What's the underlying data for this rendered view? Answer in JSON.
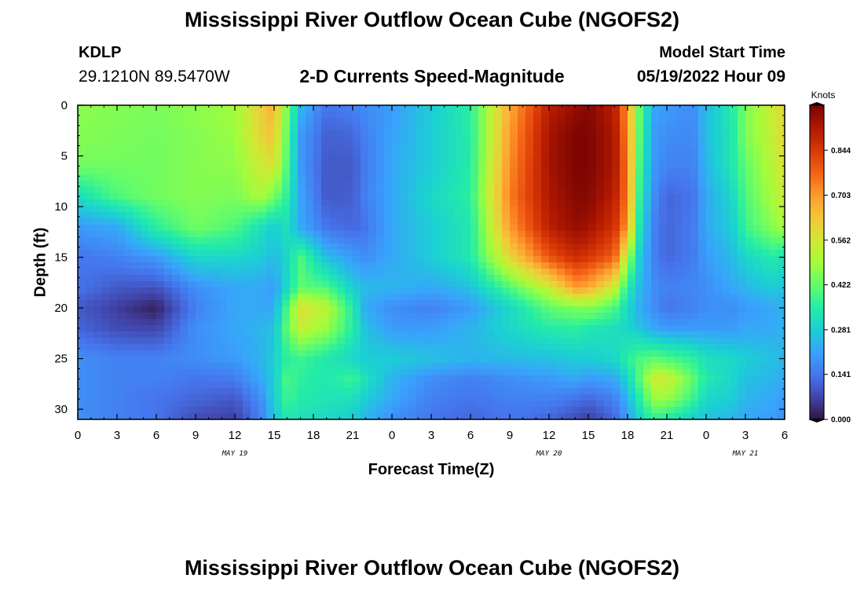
{
  "header": {
    "title": "Mississippi River Outflow Ocean Cube (NGOFS2)",
    "station_id": "KDLP",
    "station_coords": "29.1210N  89.5470W",
    "subtitle": "2-D Currents Speed-Magnitude",
    "model_label": "Model Start Time",
    "model_time": "05/19/2022 Hour 09"
  },
  "footer": {
    "title": "Mississippi River Outflow Ocean Cube (NGOFS2)"
  },
  "chart_data": {
    "type": "heatmap",
    "title": "2-D Currents Speed-Magnitude",
    "xlabel": "Forecast Time(Z)",
    "ylabel": "Depth (ft)",
    "x_tick_labels": [
      "0",
      "3",
      "6",
      "9",
      "12",
      "15",
      "18",
      "21",
      "0",
      "3",
      "6",
      "9",
      "12",
      "15",
      "18",
      "21",
      "0",
      "3",
      "6"
    ],
    "x_range_hours": [
      0,
      54
    ],
    "date_labels": [
      {
        "label": "MAY 19",
        "hour": 12
      },
      {
        "label": "MAY 20",
        "hour": 36
      },
      {
        "label": "MAY 21",
        "hour": 51
      }
    ],
    "y_ticks": [
      0,
      5,
      10,
      15,
      20,
      25,
      30
    ],
    "y_range": [
      0,
      31
    ],
    "y_inverted": true,
    "colorbar": {
      "label": "Knots",
      "ticks": [
        "0.844",
        "0.703",
        "0.562",
        "0.422",
        "0.281",
        "0.141",
        "0.000"
      ],
      "range": [
        0,
        0.985
      ],
      "colors": [
        "#30123b",
        "#4145ab",
        "#4675ed",
        "#39a2fc",
        "#1bcfd4",
        "#24eca6",
        "#61fc6c",
        "#a4fc3b",
        "#d1e834",
        "#f3c63a",
        "#fe9b2d",
        "#f36315",
        "#d93806",
        "#b11901",
        "#7a0402"
      ]
    },
    "grid": false,
    "legend": "colorbar-right",
    "value_grid": {
      "hours": [
        0,
        3,
        6,
        9,
        12,
        14,
        15,
        16,
        17,
        19,
        21,
        22,
        24,
        27,
        30,
        33,
        36,
        38,
        39,
        41,
        42,
        43,
        44,
        45,
        47,
        48,
        50,
        51,
        53,
        54
      ],
      "depths": [
        0,
        3,
        6,
        9,
        12,
        15,
        18,
        20,
        22,
        25,
        27,
        29,
        31
      ],
      "values": [
        [
          0.47,
          0.46,
          0.45,
          0.47,
          0.49,
          0.62,
          0.67,
          0.45,
          0.25,
          0.14,
          0.16,
          0.18,
          0.2,
          0.28,
          0.36,
          0.68,
          0.9,
          0.95,
          0.97,
          0.9,
          0.7,
          0.4,
          0.22,
          0.2,
          0.18,
          0.25,
          0.35,
          0.45,
          0.55,
          0.6
        ],
        [
          0.46,
          0.45,
          0.44,
          0.46,
          0.48,
          0.6,
          0.64,
          0.42,
          0.2,
          0.11,
          0.12,
          0.16,
          0.21,
          0.28,
          0.35,
          0.7,
          0.93,
          0.98,
          0.98,
          0.92,
          0.72,
          0.38,
          0.2,
          0.18,
          0.17,
          0.25,
          0.34,
          0.45,
          0.54,
          0.6
        ],
        [
          0.44,
          0.44,
          0.44,
          0.46,
          0.47,
          0.55,
          0.58,
          0.4,
          0.2,
          0.1,
          0.1,
          0.15,
          0.22,
          0.28,
          0.35,
          0.72,
          0.93,
          0.98,
          0.98,
          0.92,
          0.74,
          0.36,
          0.2,
          0.16,
          0.16,
          0.24,
          0.34,
          0.42,
          0.52,
          0.58
        ],
        [
          0.31,
          0.4,
          0.44,
          0.46,
          0.45,
          0.5,
          0.44,
          0.36,
          0.22,
          0.1,
          0.11,
          0.16,
          0.22,
          0.3,
          0.36,
          0.74,
          0.92,
          0.97,
          0.97,
          0.9,
          0.74,
          0.33,
          0.18,
          0.12,
          0.14,
          0.22,
          0.3,
          0.4,
          0.5,
          0.55
        ],
        [
          0.2,
          0.22,
          0.36,
          0.44,
          0.4,
          0.32,
          0.28,
          0.32,
          0.22,
          0.14,
          0.12,
          0.14,
          0.22,
          0.28,
          0.34,
          0.7,
          0.9,
          0.95,
          0.94,
          0.86,
          0.7,
          0.3,
          0.16,
          0.12,
          0.15,
          0.22,
          0.28,
          0.38,
          0.46,
          0.5
        ],
        [
          0.14,
          0.16,
          0.2,
          0.3,
          0.3,
          0.28,
          0.25,
          0.3,
          0.4,
          0.25,
          0.2,
          0.18,
          0.22,
          0.28,
          0.34,
          0.6,
          0.8,
          0.87,
          0.85,
          0.78,
          0.5,
          0.26,
          0.16,
          0.12,
          0.15,
          0.2,
          0.25,
          0.3,
          0.35,
          0.32
        ],
        [
          0.14,
          0.1,
          0.09,
          0.18,
          0.22,
          0.22,
          0.2,
          0.3,
          0.42,
          0.4,
          0.28,
          0.25,
          0.24,
          0.22,
          0.26,
          0.4,
          0.55,
          0.7,
          0.68,
          0.55,
          0.35,
          0.24,
          0.18,
          0.16,
          0.17,
          0.18,
          0.22,
          0.24,
          0.28,
          0.26
        ],
        [
          0.1,
          0.06,
          0.02,
          0.16,
          0.22,
          0.22,
          0.22,
          0.4,
          0.58,
          0.52,
          0.35,
          0.22,
          0.18,
          0.16,
          0.2,
          0.3,
          0.42,
          0.45,
          0.46,
          0.4,
          0.3,
          0.22,
          0.18,
          0.14,
          0.16,
          0.18,
          0.18,
          0.2,
          0.22,
          0.24
        ],
        [
          0.12,
          0.08,
          0.07,
          0.18,
          0.22,
          0.24,
          0.26,
          0.42,
          0.54,
          0.48,
          0.35,
          0.26,
          0.2,
          0.2,
          0.24,
          0.3,
          0.35,
          0.36,
          0.34,
          0.32,
          0.3,
          0.26,
          0.22,
          0.2,
          0.2,
          0.2,
          0.2,
          0.22,
          0.22,
          0.24
        ],
        [
          0.18,
          0.16,
          0.16,
          0.18,
          0.2,
          0.24,
          0.28,
          0.36,
          0.38,
          0.34,
          0.3,
          0.28,
          0.28,
          0.26,
          0.24,
          0.25,
          0.26,
          0.28,
          0.28,
          0.3,
          0.36,
          0.4,
          0.42,
          0.4,
          0.36,
          0.32,
          0.3,
          0.28,
          0.26,
          0.24
        ],
        [
          0.18,
          0.16,
          0.16,
          0.14,
          0.15,
          0.22,
          0.28,
          0.4,
          0.36,
          0.34,
          0.38,
          0.32,
          0.24,
          0.18,
          0.16,
          0.18,
          0.2,
          0.22,
          0.2,
          0.22,
          0.3,
          0.42,
          0.55,
          0.55,
          0.42,
          0.34,
          0.3,
          0.26,
          0.24,
          0.22
        ],
        [
          0.18,
          0.16,
          0.14,
          0.12,
          0.1,
          0.18,
          0.28,
          0.38,
          0.35,
          0.33,
          0.32,
          0.28,
          0.22,
          0.16,
          0.14,
          0.16,
          0.16,
          0.14,
          0.12,
          0.16,
          0.24,
          0.36,
          0.48,
          0.48,
          0.38,
          0.3,
          0.28,
          0.24,
          0.22,
          0.2
        ],
        [
          0.18,
          0.16,
          0.14,
          0.08,
          0.06,
          0.16,
          0.26,
          0.34,
          0.32,
          0.3,
          0.28,
          0.24,
          0.18,
          0.14,
          0.12,
          0.14,
          0.12,
          0.08,
          0.06,
          0.12,
          0.2,
          0.3,
          0.36,
          0.34,
          0.28,
          0.26,
          0.24,
          0.22,
          0.2,
          0.18
        ]
      ]
    }
  }
}
